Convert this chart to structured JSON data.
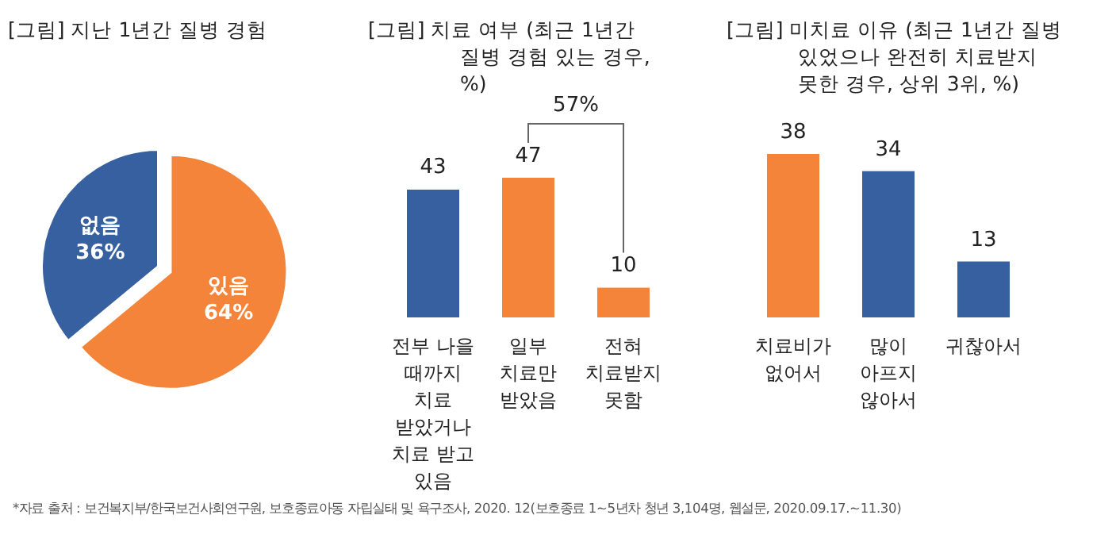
{
  "chart_data": [
    {
      "type": "pie",
      "title": "[그림] 지난 1년간 질병 경험",
      "categories": [
        "없음",
        "있음"
      ],
      "values": [
        36,
        64
      ],
      "colors": [
        "#36609f",
        "#f5843b"
      ],
      "value_labels": [
        "36%",
        "64%"
      ],
      "annotations": [
        "*자료 출처 : 보건복지부/한국보건사회연구원, 보호종료아동 자립실태 및 욕구조사, 2020. 12(보호종료 1~5년차 청년 3,104명, 웹설문, 2020.09.17.~11.30)"
      ]
    },
    {
      "type": "bar",
      "title": "[그림] 치료 여부 (최근 1년간 질병 경험 있는 경우, %)",
      "categories": [
        "전부 나을 때까지 치료 받았거나 치료 받고 있음",
        "일부 치료만 받았음",
        "전혀 치료받지 못함"
      ],
      "values": [
        43,
        47,
        10
      ],
      "colors": [
        "#36609f",
        "#f5843b",
        "#f5843b"
      ],
      "data_labels": true,
      "annotations": [
        "57%"
      ]
    },
    {
      "type": "bar",
      "title": "[그림] 미치료 이유 (최근 1년간 질병 있었으나 완전히 치료받지 못한 경우, 상위 3위, %)",
      "categories": [
        "치료비가 없어서",
        "많이 아프지 않아서",
        "귀찮아서"
      ],
      "values": [
        38,
        34,
        13
      ],
      "colors": [
        "#f5843b",
        "#36609f",
        "#36609f"
      ],
      "data_labels": true
    }
  ]
}
